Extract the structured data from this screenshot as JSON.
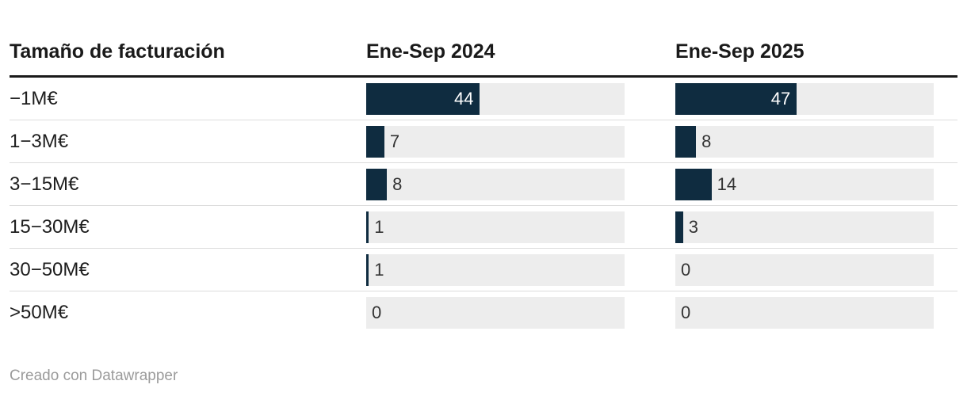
{
  "header": {
    "title_column": "Tamaño de facturación",
    "columns": [
      "Ene-Sep 2024",
      "Ene-Sep 2025"
    ]
  },
  "chart_data": {
    "type": "bar",
    "categories": [
      "−1M€",
      "1−3M€",
      "3−15M€",
      "15−30M€",
      "30−50M€",
      ">50M€"
    ],
    "series": [
      {
        "name": "Ene-Sep 2024",
        "values": [
          44,
          7,
          8,
          1,
          1,
          0
        ]
      },
      {
        "name": "Ene-Sep 2025",
        "values": [
          47,
          8,
          14,
          3,
          0,
          0
        ]
      }
    ],
    "xlim": [
      0,
      100
    ],
    "value_labels": true,
    "grid": false,
    "legend_position": "column-headers",
    "orientation": "horizontal"
  },
  "footer": {
    "credit": "Creado con Datawrapper"
  },
  "colors": {
    "bar": "#0f2c40",
    "track": "#ededed",
    "header_rule": "#1a1a1a",
    "row_separator": "#dcdcdc",
    "value_inside_text": "#ffffff",
    "value_outside_text": "#333333",
    "footer_text": "#9b9b9b"
  }
}
